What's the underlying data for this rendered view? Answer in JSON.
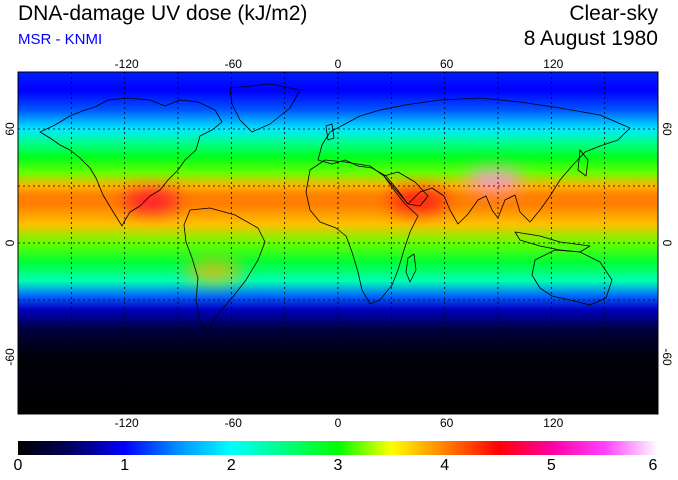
{
  "header": {
    "title": "DNA-damage UV dose (kJ/m2)",
    "source": "MSR - KNMI",
    "sky_condition": "Clear-sky",
    "date": "8 August 1980"
  },
  "colors": {
    "title": "#000000",
    "source": "#0000ff",
    "background": "#ffffff",
    "land_outline": "#000000",
    "grid": "#000000"
  },
  "map": {
    "projection": "equirectangular",
    "lon_range": [
      -180,
      180
    ],
    "lat_range": [
      -90,
      90
    ],
    "graticule_style": "dotted",
    "graticule_lon_step": 30,
    "graticule_lat_step": 30,
    "lon_labels": [
      "-120",
      "-60",
      "0",
      "60",
      "120"
    ],
    "lat_labels": [
      "60",
      "0",
      "-60"
    ]
  },
  "colorbar": {
    "min": 0,
    "max": 6,
    "labels": [
      "0",
      "1",
      "2",
      "3",
      "4",
      "5",
      "6"
    ],
    "stops": [
      {
        "value": 0,
        "color": "#000000"
      },
      {
        "value": 0.5,
        "color": "#000060"
      },
      {
        "value": 1,
        "color": "#0000ff"
      },
      {
        "value": 1.5,
        "color": "#0090ff"
      },
      {
        "value": 2,
        "color": "#00ffff"
      },
      {
        "value": 2.5,
        "color": "#00ff80"
      },
      {
        "value": 3,
        "color": "#00ff00"
      },
      {
        "value": 3.5,
        "color": "#ffff00"
      },
      {
        "value": 4,
        "color": "#ff8000"
      },
      {
        "value": 4.5,
        "color": "#ff0000"
      },
      {
        "value": 5,
        "color": "#ff00a0"
      },
      {
        "value": 5.5,
        "color": "#ff40ff"
      },
      {
        "value": 6,
        "color": "#ffffff"
      }
    ]
  },
  "zonal_dose_profile": [
    {
      "lat": 90,
      "dose": 1.1
    },
    {
      "lat": 80,
      "dose": 1.0
    },
    {
      "lat": 70,
      "dose": 1.3
    },
    {
      "lat": 60,
      "dose": 1.9
    },
    {
      "lat": 52,
      "dose": 2.5
    },
    {
      "lat": 45,
      "dose": 2.9
    },
    {
      "lat": 37,
      "dose": 3.2
    },
    {
      "lat": 30,
      "dose": 3.8
    },
    {
      "lat": 25,
      "dose": 4.0
    },
    {
      "lat": 20,
      "dose": 4.0
    },
    {
      "lat": 10,
      "dose": 3.75
    },
    {
      "lat": 0,
      "dose": 3.2
    },
    {
      "lat": -10,
      "dose": 2.8
    },
    {
      "lat": -20,
      "dose": 2.3
    },
    {
      "lat": -28,
      "dose": 1.35
    },
    {
      "lat": -35,
      "dose": 0.8
    },
    {
      "lat": -45,
      "dose": 0.35
    },
    {
      "lat": -60,
      "dose": 0.05
    },
    {
      "lat": -90,
      "dose": 0
    }
  ],
  "hotspots": [
    {
      "region": "Tibetan Plateau",
      "lon": 88,
      "lat": 33,
      "dose": 5.7
    },
    {
      "region": "Arabia / Sahara",
      "lon": 45,
      "lat": 22,
      "dose": 4.6
    },
    {
      "region": "Mexico",
      "lon": -105,
      "lat": 22,
      "dose": 4.7
    },
    {
      "region": "Andes",
      "lon": -70,
      "lat": -15,
      "dose": 3.8
    }
  ]
}
